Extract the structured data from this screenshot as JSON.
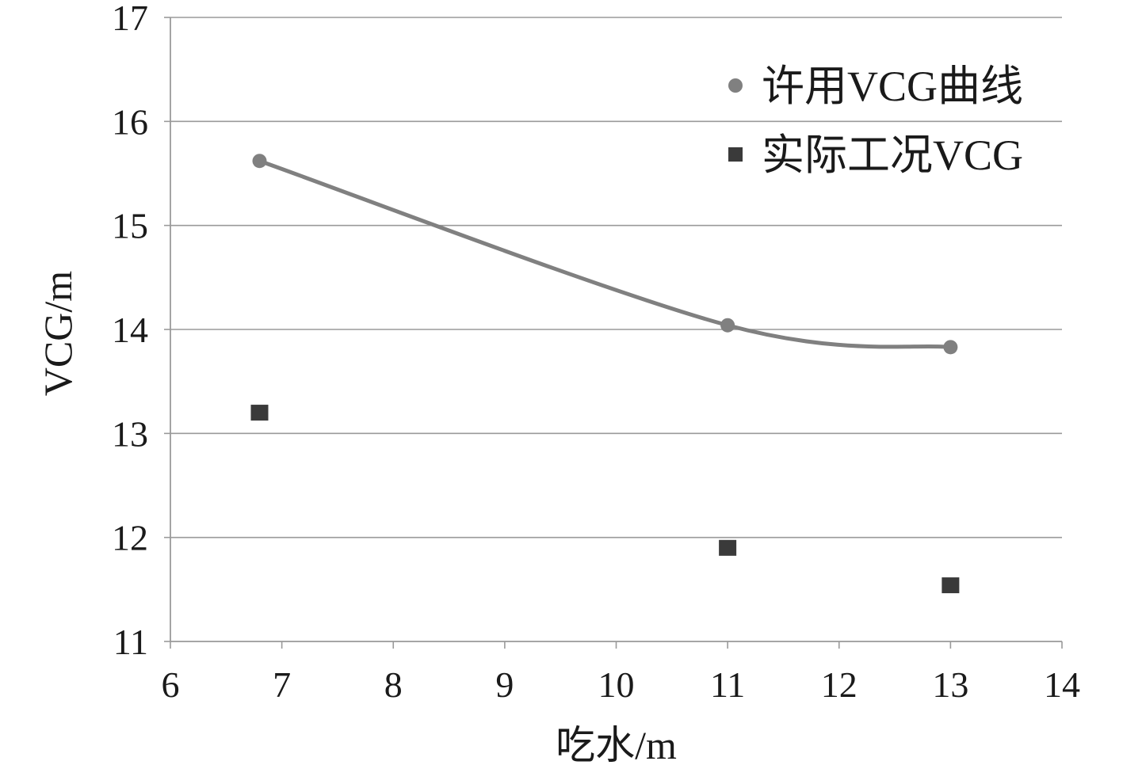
{
  "chart_data": {
    "type": "scatter",
    "xlabel": "吃水/m",
    "ylabel": "VCG/m",
    "xlim": [
      6,
      14
    ],
    "ylim": [
      11,
      17
    ],
    "xticks": [
      6,
      7,
      8,
      9,
      10,
      11,
      12,
      13,
      14
    ],
    "yticks": [
      11,
      12,
      13,
      14,
      15,
      16,
      17
    ],
    "grid": "horizontal",
    "legend_position": "top-right",
    "series": [
      {
        "name": "许用VCG曲线",
        "marker": "circle",
        "smooth_line": true,
        "color": "#808080",
        "x": [
          6.8,
          11,
          13
        ],
        "y": [
          15.62,
          14.04,
          13.83
        ]
      },
      {
        "name": "实际工况VCG",
        "marker": "square",
        "smooth_line": false,
        "color": "#3a3a3a",
        "x": [
          6.8,
          11,
          13
        ],
        "y": [
          13.2,
          11.9,
          11.54
        ]
      }
    ]
  }
}
